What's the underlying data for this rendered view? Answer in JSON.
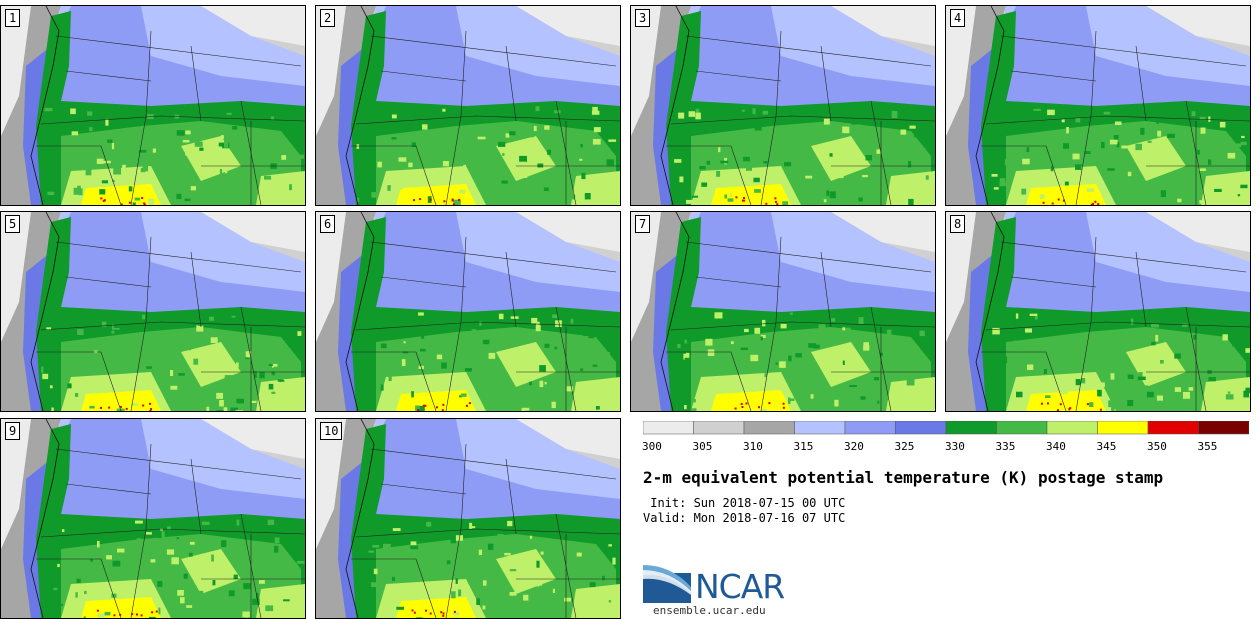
{
  "figure": {
    "title": "2-m equivalent potential temperature (K) postage stamp",
    "init": " Init: Sun 2018-07-15 00 UTC",
    "valid": "Valid: Mon 2018-07-16 07 UTC"
  },
  "panels": [
    {
      "label": "1"
    },
    {
      "label": "2"
    },
    {
      "label": "3"
    },
    {
      "label": "4"
    },
    {
      "label": "5"
    },
    {
      "label": "6"
    },
    {
      "label": "7"
    },
    {
      "label": "8"
    },
    {
      "label": "9"
    },
    {
      "label": "10"
    }
  ],
  "colorbar": {
    "ticks": [
      "300",
      "305",
      "310",
      "315",
      "320",
      "325",
      "330",
      "335",
      "340",
      "345",
      "350",
      "355"
    ],
    "colors": [
      "#ececec",
      "#d0d0d0",
      "#a6a6a6",
      "#b4c3ff",
      "#8e9cf5",
      "#6b79e6",
      "#0f9a2a",
      "#45b945",
      "#bff06a",
      "#ffff00",
      "#e00000",
      "#7a0000"
    ]
  },
  "logo": {
    "name": "NCAR",
    "url": "ensemble.ucar.edu"
  }
}
